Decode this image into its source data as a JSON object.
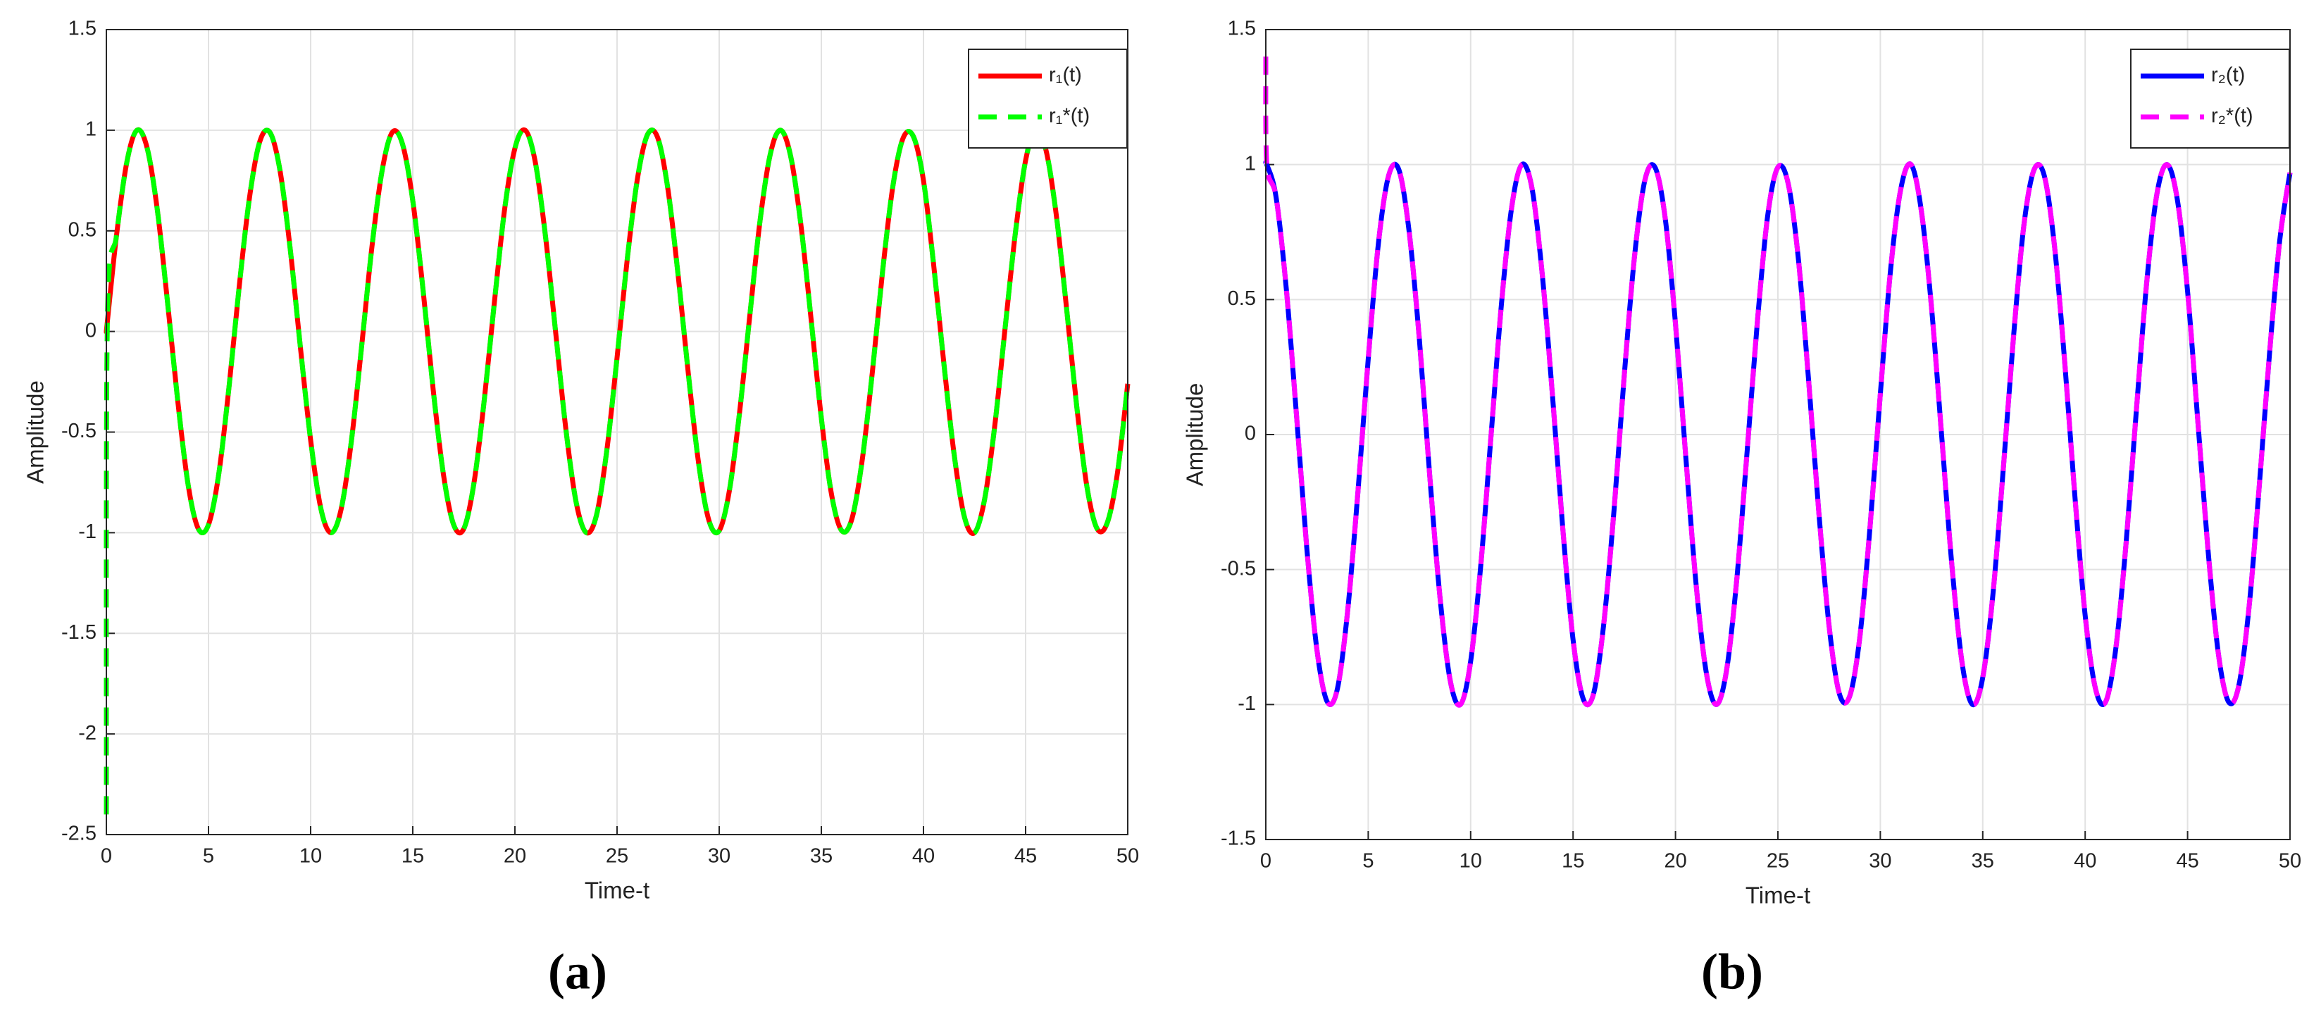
{
  "chart_data": [
    {
      "type": "line",
      "label": "(a)",
      "xlabel": "Time-t",
      "ylabel": "Amplitude",
      "xlim": [
        0,
        50
      ],
      "xticks": [
        0,
        5,
        10,
        15,
        20,
        25,
        30,
        35,
        40,
        45,
        50
      ],
      "ylim": [
        -2.5,
        1.5
      ],
      "yticks": [
        -2.5,
        -2,
        -1.5,
        -1,
        -0.5,
        0,
        0.5,
        1,
        1.5
      ],
      "grid": true,
      "legend": "upper right",
      "x": [
        0,
        0.05,
        0.5,
        1,
        1.5,
        2,
        2.5,
        3,
        3.5,
        4,
        4.5,
        5,
        5.5,
        6,
        6.5,
        7,
        7.5,
        8,
        8.5,
        9,
        9.5,
        10,
        10.5,
        11,
        11.5,
        12,
        12.5,
        13,
        13.5,
        14,
        14.5,
        15,
        15.5,
        16,
        16.5,
        17,
        17.5,
        18,
        18.5,
        19,
        19.5,
        20,
        20.5,
        21,
        21.5,
        22,
        22.5,
        23,
        23.5,
        24,
        24.5,
        25,
        25.5,
        26,
        26.5,
        27,
        27.5,
        28,
        28.5,
        29,
        29.5,
        30,
        30.5,
        31,
        31.5,
        32,
        32.5,
        33,
        33.5,
        34,
        34.5,
        35,
        35.5,
        36,
        36.5,
        37,
        37.5,
        38,
        38.5,
        39,
        39.5,
        40,
        40.5,
        41,
        41.5,
        42,
        42.5,
        43,
        43.5,
        44,
        44.5,
        45,
        45.5,
        46,
        46.5,
        47,
        47.5,
        48,
        48.5,
        49,
        49.5,
        50
      ],
      "series": [
        {
          "name": "r₁(t)",
          "color": "#ff0000",
          "linestyle": "solid",
          "values": [
            0,
            0.05,
            0.48,
            0.84,
            1.0,
            0.91,
            0.6,
            0.14,
            -0.35,
            -0.76,
            -0.98,
            -0.96,
            -0.71,
            -0.28,
            0.22,
            0.66,
            0.94,
            0.99,
            0.8,
            0.41,
            -0.08,
            -0.54,
            -0.88,
            -1.0,
            -0.88,
            -0.54,
            -0.07,
            0.42,
            0.8,
            0.99,
            0.93,
            0.65,
            0.21,
            -0.29,
            -0.71,
            -0.96,
            -0.98,
            -0.75,
            -0.34,
            0.15,
            0.61,
            0.91,
            1.0,
            0.84,
            0.47,
            -0.01,
            -0.49,
            -0.85,
            -1.0,
            -0.91,
            -0.59,
            -0.13,
            0.36,
            0.76,
            0.98,
            0.96,
            0.7,
            0.27,
            -0.22,
            -0.66,
            -0.94,
            -0.99,
            -0.79,
            -0.4,
            0.08,
            0.55,
            0.88,
            1.0,
            0.87,
            0.53,
            0.06,
            -0.43,
            -0.81,
            -0.99,
            -0.93,
            -0.64,
            -0.2,
            0.3,
            0.72,
            0.96,
            0.97,
            0.75,
            0.33,
            -0.16,
            -0.61,
            -0.92,
            -1.0,
            -0.83,
            -0.46,
            0.02,
            0.49,
            0.85,
            1.0,
            0.9,
            0.58,
            0.12,
            -0.37,
            -0.77,
            -0.98,
            -0.95,
            -0.7,
            -0.26
          ]
        },
        {
          "name": "r₁*(t)",
          "color": "#00ff00",
          "linestyle": "dashed",
          "values": [
            -2.4,
            0.05,
            0.48,
            0.84,
            1.0,
            0.91,
            0.6,
            0.14,
            -0.35,
            -0.76,
            -0.98,
            -0.96,
            -0.71,
            -0.28,
            0.22,
            0.66,
            0.94,
            0.99,
            0.8,
            0.41,
            -0.08,
            -0.54,
            -0.88,
            -1.0,
            -0.88,
            -0.54,
            -0.07,
            0.42,
            0.8,
            0.99,
            0.93,
            0.65,
            0.21,
            -0.29,
            -0.71,
            -0.96,
            -0.98,
            -0.75,
            -0.34,
            0.15,
            0.61,
            0.91,
            1.0,
            0.84,
            0.47,
            -0.01,
            -0.49,
            -0.85,
            -1.0,
            -0.91,
            -0.59,
            -0.13,
            0.36,
            0.76,
            0.98,
            0.96,
            0.7,
            0.27,
            -0.22,
            -0.66,
            -0.94,
            -0.99,
            -0.79,
            -0.4,
            0.08,
            0.55,
            0.88,
            1.0,
            0.87,
            0.53,
            0.06,
            -0.43,
            -0.81,
            -0.99,
            -0.93,
            -0.64,
            -0.2,
            0.3,
            0.72,
            0.96,
            0.97,
            0.75,
            0.33,
            -0.16,
            -0.61,
            -0.92,
            -1.0,
            -0.83,
            -0.46,
            0.02,
            0.49,
            0.85,
            1.0,
            0.9,
            0.58,
            0.12,
            -0.37,
            -0.77,
            -0.98,
            -0.95,
            -0.7,
            -0.26
          ]
        }
      ]
    },
    {
      "type": "line",
      "label": "(b)",
      "xlabel": "Time-t",
      "ylabel": "Amplitude",
      "xlim": [
        0,
        50
      ],
      "xticks": [
        0,
        5,
        10,
        15,
        20,
        25,
        30,
        35,
        40,
        45,
        50
      ],
      "ylim": [
        -1.5,
        1.5
      ],
      "yticks": [
        -1.5,
        -1,
        -0.5,
        0,
        0.5,
        1,
        1.5
      ],
      "grid": true,
      "legend": "upper right",
      "x": [
        0,
        0.05,
        0.5,
        1,
        1.5,
        2,
        2.5,
        3,
        3.5,
        4,
        4.5,
        5,
        5.5,
        6,
        6.5,
        7,
        7.5,
        8,
        8.5,
        9,
        9.5,
        10,
        10.5,
        11,
        11.5,
        12,
        12.5,
        13,
        13.5,
        14,
        14.5,
        15,
        15.5,
        16,
        16.5,
        17,
        17.5,
        18,
        18.5,
        19,
        19.5,
        20,
        20.5,
        21,
        21.5,
        22,
        22.5,
        23,
        23.5,
        24,
        24.5,
        25,
        25.5,
        26,
        26.5,
        27,
        27.5,
        28,
        28.5,
        29,
        29.5,
        30,
        30.5,
        31,
        31.5,
        32,
        32.5,
        33,
        33.5,
        34,
        34.5,
        35,
        35.5,
        36,
        36.5,
        37,
        37.5,
        38,
        38.5,
        39,
        39.5,
        40,
        40.5,
        41,
        41.5,
        42,
        42.5,
        43,
        43.5,
        44,
        44.5,
        45,
        45.5,
        46,
        46.5,
        47,
        47.5,
        48,
        48.5,
        49,
        49.5,
        50
      ],
      "series": [
        {
          "name": "r₂(t)",
          "color": "#0000ff",
          "linestyle": "solid",
          "values": [
            1.0,
            1.0,
            0.88,
            0.54,
            0.07,
            -0.42,
            -0.8,
            -0.99,
            -0.94,
            -0.65,
            -0.21,
            0.28,
            0.71,
            0.96,
            0.98,
            0.75,
            0.35,
            -0.15,
            -0.6,
            -0.91,
            -1.0,
            -0.84,
            -0.48,
            0.0,
            0.48,
            0.84,
            1.0,
            0.91,
            0.59,
            0.14,
            -0.35,
            -0.76,
            -0.98,
            -0.96,
            -0.7,
            -0.28,
            0.22,
            0.66,
            0.94,
            0.99,
            0.8,
            0.41,
            -0.08,
            -0.55,
            -0.88,
            -1.0,
            -0.87,
            -0.53,
            -0.06,
            0.42,
            0.81,
            0.99,
            0.93,
            0.65,
            0.2,
            -0.29,
            -0.71,
            -0.96,
            -0.97,
            -0.75,
            -0.34,
            0.15,
            0.61,
            0.91,
            1.0,
            0.83,
            0.47,
            -0.01,
            -0.49,
            -0.85,
            -1.0,
            -0.9,
            -0.59,
            -0.13,
            0.36,
            0.77,
            0.98,
            0.96,
            0.7,
            0.27,
            -0.23,
            -0.67,
            -0.94,
            -0.99,
            -0.79,
            -0.4,
            0.09,
            0.56,
            0.89,
            1.0,
            0.87,
            0.53,
            0.05,
            -0.43,
            -0.81,
            -0.99,
            -0.93,
            -0.64,
            -0.19,
            0.3,
            0.72,
            0.97
          ]
        },
        {
          "name": "r₂*(t)",
          "color": "#ff00ff",
          "linestyle": "dashed",
          "values": [
            1.4,
            1.0,
            0.88,
            0.54,
            0.07,
            -0.42,
            -0.8,
            -0.99,
            -0.94,
            -0.65,
            -0.21,
            0.28,
            0.71,
            0.96,
            0.98,
            0.75,
            0.35,
            -0.15,
            -0.6,
            -0.91,
            -1.0,
            -0.84,
            -0.48,
            0.0,
            0.48,
            0.84,
            1.0,
            0.91,
            0.59,
            0.14,
            -0.35,
            -0.76,
            -0.98,
            -0.96,
            -0.7,
            -0.28,
            0.22,
            0.66,
            0.94,
            0.99,
            0.8,
            0.41,
            -0.08,
            -0.55,
            -0.88,
            -1.0,
            -0.87,
            -0.53,
            -0.06,
            0.42,
            0.81,
            0.99,
            0.93,
            0.65,
            0.2,
            -0.29,
            -0.71,
            -0.96,
            -0.97,
            -0.75,
            -0.34,
            0.15,
            0.61,
            0.91,
            1.0,
            0.83,
            0.47,
            -0.01,
            -0.49,
            -0.85,
            -1.0,
            -0.9,
            -0.59,
            -0.13,
            0.36,
            0.77,
            0.98,
            0.96,
            0.7,
            0.27,
            -0.23,
            -0.67,
            -0.94,
            -0.99,
            -0.79,
            -0.4,
            0.09,
            0.56,
            0.89,
            1.0,
            0.87,
            0.53,
            0.05,
            -0.43,
            -0.81,
            -0.99,
            -0.93,
            -0.64,
            -0.19,
            0.3,
            0.72,
            0.97
          ]
        }
      ]
    }
  ]
}
